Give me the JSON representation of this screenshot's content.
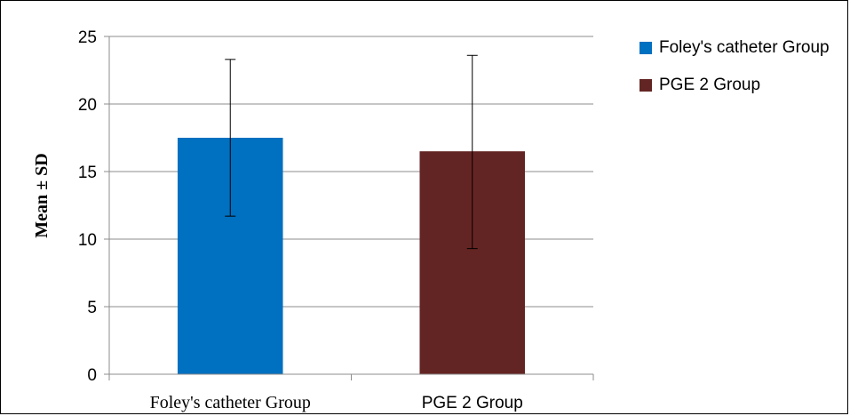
{
  "chart_data": {
    "type": "bar",
    "categories": [
      "Foley's catheter Group",
      "PGE 2 Group"
    ],
    "series": [
      {
        "name": "Foley's catheter Group",
        "color": "#0070C0",
        "category": "Foley's catheter Group",
        "value": 17.5,
        "error_low": 11.7,
        "error_high": 23.3
      },
      {
        "name": "PGE 2 Group",
        "color": "#632523",
        "category": "PGE 2 Group",
        "value": 16.5,
        "error_low": 9.3,
        "error_high": 23.6
      }
    ],
    "ylabel": "Mean ± SD",
    "ylim": [
      0,
      25
    ],
    "yticks": [
      0,
      5,
      10,
      15,
      20,
      25
    ],
    "grid": true,
    "legend": "right"
  }
}
